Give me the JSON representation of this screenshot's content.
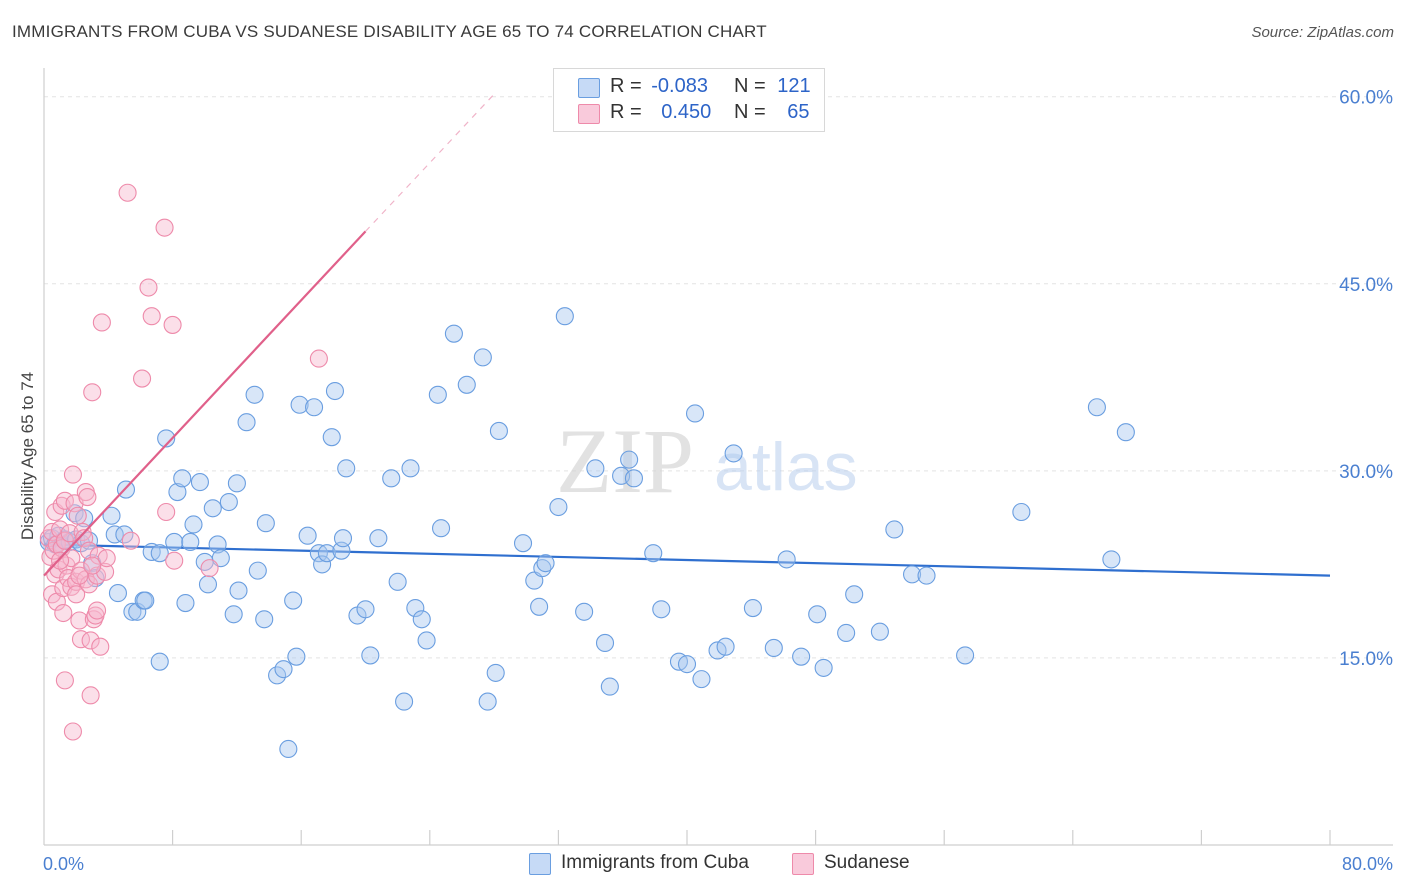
{
  "title": "IMMIGRANTS FROM CUBA VS SUDANESE DISABILITY AGE 65 TO 74 CORRELATION CHART",
  "source": "Source: ZipAtlas.com",
  "watermark": {
    "zip": "ZIP",
    "atlas": "atlas"
  },
  "legend": {
    "r_label": "R =",
    "n_label": "N =",
    "series": [
      {
        "name": "Immigrants from Cuba",
        "r": "-0.083",
        "n": "121"
      },
      {
        "name": "Sudanese",
        "r": "0.450",
        "n": "65"
      }
    ]
  },
  "chart_data": {
    "type": "scatter",
    "title": "IMMIGRANTS FROM CUBA VS SUDANESE DISABILITY AGE 65 TO 74 CORRELATION CHART",
    "xlabel": "",
    "ylabel": "Disability Age 65 to 74",
    "xlim": [
      0,
      80
    ],
    "ylim": [
      0,
      61.5
    ],
    "x_tick_labels": [
      "0.0%",
      "80.0%"
    ],
    "y_ticks": [
      15,
      30,
      45,
      60
    ],
    "y_tick_labels": [
      "15.0%",
      "30.0%",
      "45.0%",
      "60.0%"
    ],
    "colors": {
      "cuba": "#6a9ee0",
      "sudanese": "#ee8aaa",
      "cuba_line": "#2f6fcf",
      "sudanese_line": "#e0608a"
    },
    "series": [
      {
        "name": "Immigrants from Cuba",
        "r": -0.083,
        "n": 121,
        "trend": {
          "x0": 0,
          "y0": 24.1,
          "x1": 80,
          "y1": 21.6
        },
        "points": [
          [
            0.3,
            24.3
          ],
          [
            0.5,
            24.6
          ],
          [
            0.7,
            24.1
          ],
          [
            0.9,
            24.8
          ],
          [
            1.1,
            24.0
          ],
          [
            1.3,
            24.5
          ],
          [
            1.6,
            24.3
          ],
          [
            1.9,
            26.6
          ],
          [
            2.0,
            24.5
          ],
          [
            2.3,
            24.2
          ],
          [
            2.5,
            26.2
          ],
          [
            2.8,
            24.4
          ],
          [
            3.0,
            22.6
          ],
          [
            3.2,
            21.4
          ],
          [
            4.2,
            26.4
          ],
          [
            4.4,
            24.9
          ],
          [
            4.6,
            20.2
          ],
          [
            5.0,
            24.9
          ],
          [
            5.1,
            28.5
          ],
          [
            5.5,
            18.7
          ],
          [
            5.8,
            18.7
          ],
          [
            6.2,
            19.6
          ],
          [
            6.3,
            19.6
          ],
          [
            6.7,
            23.5
          ],
          [
            7.2,
            23.4
          ],
          [
            7.2,
            14.7
          ],
          [
            7.6,
            32.6
          ],
          [
            8.1,
            24.3
          ],
          [
            8.3,
            28.3
          ],
          [
            8.6,
            29.4
          ],
          [
            8.8,
            19.4
          ],
          [
            9.1,
            24.3
          ],
          [
            9.3,
            25.7
          ],
          [
            9.7,
            29.1
          ],
          [
            10.0,
            22.7
          ],
          [
            10.2,
            20.9
          ],
          [
            10.5,
            27.0
          ],
          [
            10.8,
            24.1
          ],
          [
            11.0,
            23.0
          ],
          [
            11.5,
            27.5
          ],
          [
            11.8,
            18.5
          ],
          [
            12.0,
            29.0
          ],
          [
            12.1,
            20.4
          ],
          [
            12.6,
            33.9
          ],
          [
            13.1,
            36.1
          ],
          [
            13.3,
            22.0
          ],
          [
            13.7,
            18.1
          ],
          [
            13.8,
            25.8
          ],
          [
            14.5,
            13.6
          ],
          [
            14.9,
            14.1
          ],
          [
            15.2,
            7.7
          ],
          [
            15.5,
            19.6
          ],
          [
            15.7,
            15.1
          ],
          [
            15.9,
            35.3
          ],
          [
            16.4,
            24.8
          ],
          [
            16.8,
            35.1
          ],
          [
            17.1,
            23.4
          ],
          [
            17.3,
            22.5
          ],
          [
            17.6,
            23.4
          ],
          [
            17.9,
            32.7
          ],
          [
            18.1,
            36.4
          ],
          [
            18.5,
            23.6
          ],
          [
            18.6,
            24.6
          ],
          [
            18.8,
            30.2
          ],
          [
            19.5,
            18.4
          ],
          [
            20.0,
            18.9
          ],
          [
            20.3,
            15.2
          ],
          [
            20.8,
            24.6
          ],
          [
            21.6,
            29.4
          ],
          [
            22.0,
            21.1
          ],
          [
            22.4,
            11.5
          ],
          [
            22.8,
            30.2
          ],
          [
            23.1,
            19.0
          ],
          [
            23.5,
            18.1
          ],
          [
            23.8,
            16.4
          ],
          [
            24.5,
            36.1
          ],
          [
            24.7,
            25.4
          ],
          [
            25.5,
            41.0
          ],
          [
            26.3,
            36.9
          ],
          [
            27.3,
            39.1
          ],
          [
            27.6,
            11.5
          ],
          [
            28.1,
            13.8
          ],
          [
            28.3,
            33.2
          ],
          [
            29.8,
            24.2
          ],
          [
            30.5,
            21.2
          ],
          [
            30.8,
            19.1
          ],
          [
            31.0,
            22.2
          ],
          [
            31.2,
            22.6
          ],
          [
            32.0,
            27.1
          ],
          [
            32.4,
            42.4
          ],
          [
            33.6,
            18.7
          ],
          [
            34.3,
            30.2
          ],
          [
            34.9,
            16.2
          ],
          [
            35.2,
            12.7
          ],
          [
            35.9,
            29.6
          ],
          [
            36.4,
            30.9
          ],
          [
            36.7,
            29.4
          ],
          [
            37.9,
            23.4
          ],
          [
            38.4,
            18.9
          ],
          [
            39.5,
            14.7
          ],
          [
            40.0,
            14.5
          ],
          [
            40.5,
            34.6
          ],
          [
            40.9,
            13.3
          ],
          [
            41.9,
            15.6
          ],
          [
            42.4,
            15.9
          ],
          [
            42.9,
            31.4
          ],
          [
            44.1,
            19.0
          ],
          [
            45.4,
            15.8
          ],
          [
            46.2,
            22.9
          ],
          [
            47.1,
            15.1
          ],
          [
            48.1,
            18.5
          ],
          [
            48.5,
            14.2
          ],
          [
            49.9,
            17.0
          ],
          [
            50.4,
            20.1
          ],
          [
            52.0,
            17.1
          ],
          [
            52.9,
            25.3
          ],
          [
            54.0,
            21.7
          ],
          [
            54.9,
            21.6
          ],
          [
            57.3,
            15.2
          ],
          [
            60.8,
            26.7
          ],
          [
            65.5,
            35.1
          ],
          [
            66.4,
            22.9
          ],
          [
            67.3,
            33.1
          ]
        ]
      },
      {
        "name": "Sudanese",
        "r": 0.45,
        "n": 65,
        "trend": {
          "x0": 0,
          "y0": 21.6,
          "x1": 20,
          "y1": 49.2
        },
        "trend_dashed": {
          "x0": 20,
          "y0": 49.2,
          "x1": 28,
          "y1": 60.2
        },
        "points": [
          [
            0.3,
            24.6
          ],
          [
            0.4,
            23.1
          ],
          [
            0.5,
            25.1
          ],
          [
            0.5,
            20.1
          ],
          [
            0.6,
            23.6
          ],
          [
            0.7,
            26.7
          ],
          [
            0.7,
            21.7
          ],
          [
            0.8,
            24.1
          ],
          [
            0.8,
            19.5
          ],
          [
            0.9,
            22.1
          ],
          [
            1.0,
            25.3
          ],
          [
            1.1,
            27.2
          ],
          [
            1.1,
            23.8
          ],
          [
            1.2,
            20.6
          ],
          [
            1.2,
            18.6
          ],
          [
            1.3,
            27.6
          ],
          [
            1.3,
            24.4
          ],
          [
            1.3,
            13.2
          ],
          [
            1.4,
            22.4
          ],
          [
            1.5,
            21.4
          ],
          [
            1.6,
            25.0
          ],
          [
            1.7,
            23.0
          ],
          [
            1.7,
            20.7
          ],
          [
            1.8,
            29.7
          ],
          [
            1.8,
            9.1
          ],
          [
            1.9,
            27.4
          ],
          [
            2.0,
            21.1
          ],
          [
            2.0,
            20.1
          ],
          [
            2.1,
            26.4
          ],
          [
            2.2,
            18.0
          ],
          [
            2.3,
            16.5
          ],
          [
            2.3,
            22.0
          ],
          [
            2.4,
            25.1
          ],
          [
            2.5,
            24.6
          ],
          [
            2.6,
            28.3
          ],
          [
            2.6,
            21.3
          ],
          [
            2.7,
            27.9
          ],
          [
            2.8,
            23.6
          ],
          [
            2.8,
            20.9
          ],
          [
            2.9,
            16.4
          ],
          [
            2.9,
            12.0
          ],
          [
            3.0,
            36.3
          ],
          [
            3.1,
            18.1
          ],
          [
            3.2,
            18.4
          ],
          [
            3.3,
            21.6
          ],
          [
            3.4,
            23.2
          ],
          [
            3.5,
            15.9
          ],
          [
            3.6,
            41.9
          ],
          [
            3.8,
            21.9
          ],
          [
            3.9,
            23.0
          ],
          [
            3.3,
            18.8
          ],
          [
            5.2,
            52.3
          ],
          [
            5.4,
            24.4
          ],
          [
            6.1,
            37.4
          ],
          [
            6.5,
            44.7
          ],
          [
            6.7,
            42.4
          ],
          [
            7.5,
            49.5
          ],
          [
            7.6,
            26.7
          ],
          [
            8.1,
            22.8
          ],
          [
            8.0,
            41.7
          ],
          [
            10.3,
            22.2
          ],
          [
            17.1,
            39.0
          ],
          [
            2.2,
            21.6
          ],
          [
            1.0,
            22.8
          ],
          [
            3.0,
            22.4
          ]
        ]
      }
    ]
  }
}
